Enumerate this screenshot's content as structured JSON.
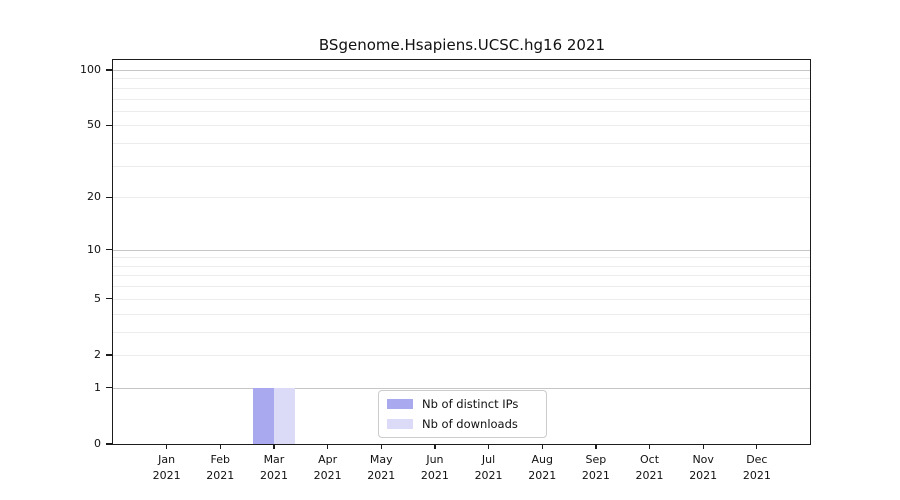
{
  "chart_data": {
    "type": "bar",
    "title": "BSgenome.Hsapiens.UCSC.hg16 2021",
    "categories": [
      "Jan",
      "Feb",
      "Mar",
      "Apr",
      "May",
      "Jun",
      "Jul",
      "Aug",
      "Sep",
      "Oct",
      "Nov",
      "Dec"
    ],
    "year_label": "2021",
    "series": [
      {
        "name": "Nb of distinct IPs",
        "color": "#a9a9ef",
        "values": [
          0,
          0,
          1,
          0,
          0,
          0,
          0,
          0,
          0,
          0,
          0,
          0
        ]
      },
      {
        "name": "Nb of downloads",
        "color": "#dbdbf8",
        "values": [
          0,
          0,
          1,
          0,
          0,
          0,
          0,
          0,
          0,
          0,
          0,
          0
        ]
      }
    ],
    "yscale": "log1p",
    "ylim": [
      0,
      114
    ],
    "yticks": [
      0,
      1,
      2,
      5,
      10,
      20,
      50,
      100
    ],
    "grid_major_values": [
      1,
      10,
      100
    ],
    "grid_minor_values": [
      2,
      3,
      4,
      5,
      6,
      7,
      8,
      9,
      20,
      30,
      40,
      50,
      60,
      70,
      80,
      90
    ],
    "grid": "on",
    "legend_position": "inside-bottom-center"
  },
  "colors": {
    "bar_distinct_ips": "#a9a9ef",
    "bar_downloads": "#dbdbf8",
    "spine": "#1c1c1c",
    "grid_major": "#c6c6c6",
    "grid_minor": "#ececec",
    "legend_border": "#cccccc",
    "text": "#111111",
    "background": "#ffffff"
  }
}
